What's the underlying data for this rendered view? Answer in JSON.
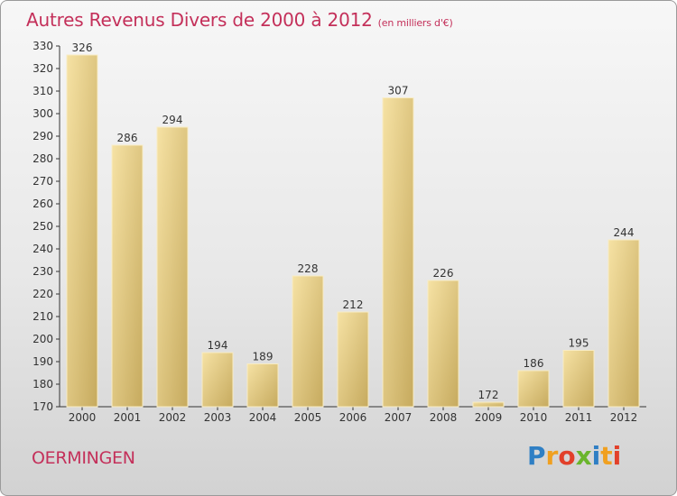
{
  "header": {
    "title": "Autres Revenus Divers de 2000 à 2012",
    "subtitle": "(en milliers d'€)"
  },
  "footer": {
    "commune": "OERMINGEN",
    "logo_letters": [
      {
        "ch": "P",
        "color": "#2f7fc4"
      },
      {
        "ch": "r",
        "color": "#f0a020"
      },
      {
        "ch": "o",
        "color": "#e2402a"
      },
      {
        "ch": "x",
        "color": "#6ab52c"
      },
      {
        "ch": "i",
        "color": "#2f7fc4"
      },
      {
        "ch": "t",
        "color": "#f0a020"
      },
      {
        "ch": "i",
        "color": "#e2402a"
      }
    ]
  },
  "colors": {
    "bar_light": "#f3dc98",
    "bar_dark": "#c8ad62",
    "axis": "#333333",
    "title": "#c4305a"
  },
  "chart_data": {
    "type": "bar",
    "title": "Autres Revenus Divers de 2000 à 2012",
    "subtitle": "(en milliers d'€)",
    "categories": [
      "2000",
      "2001",
      "2002",
      "2003",
      "2004",
      "2005",
      "2006",
      "2007",
      "2008",
      "2009",
      "2010",
      "2011",
      "2012"
    ],
    "values": [
      326,
      286,
      294,
      194,
      189,
      228,
      212,
      307,
      226,
      172,
      186,
      195,
      244
    ],
    "ylim": [
      170,
      330
    ],
    "yticks": [
      170,
      180,
      190,
      200,
      210,
      220,
      230,
      240,
      250,
      260,
      270,
      280,
      290,
      300,
      310,
      320,
      330
    ],
    "grid": false,
    "legend": "none"
  }
}
